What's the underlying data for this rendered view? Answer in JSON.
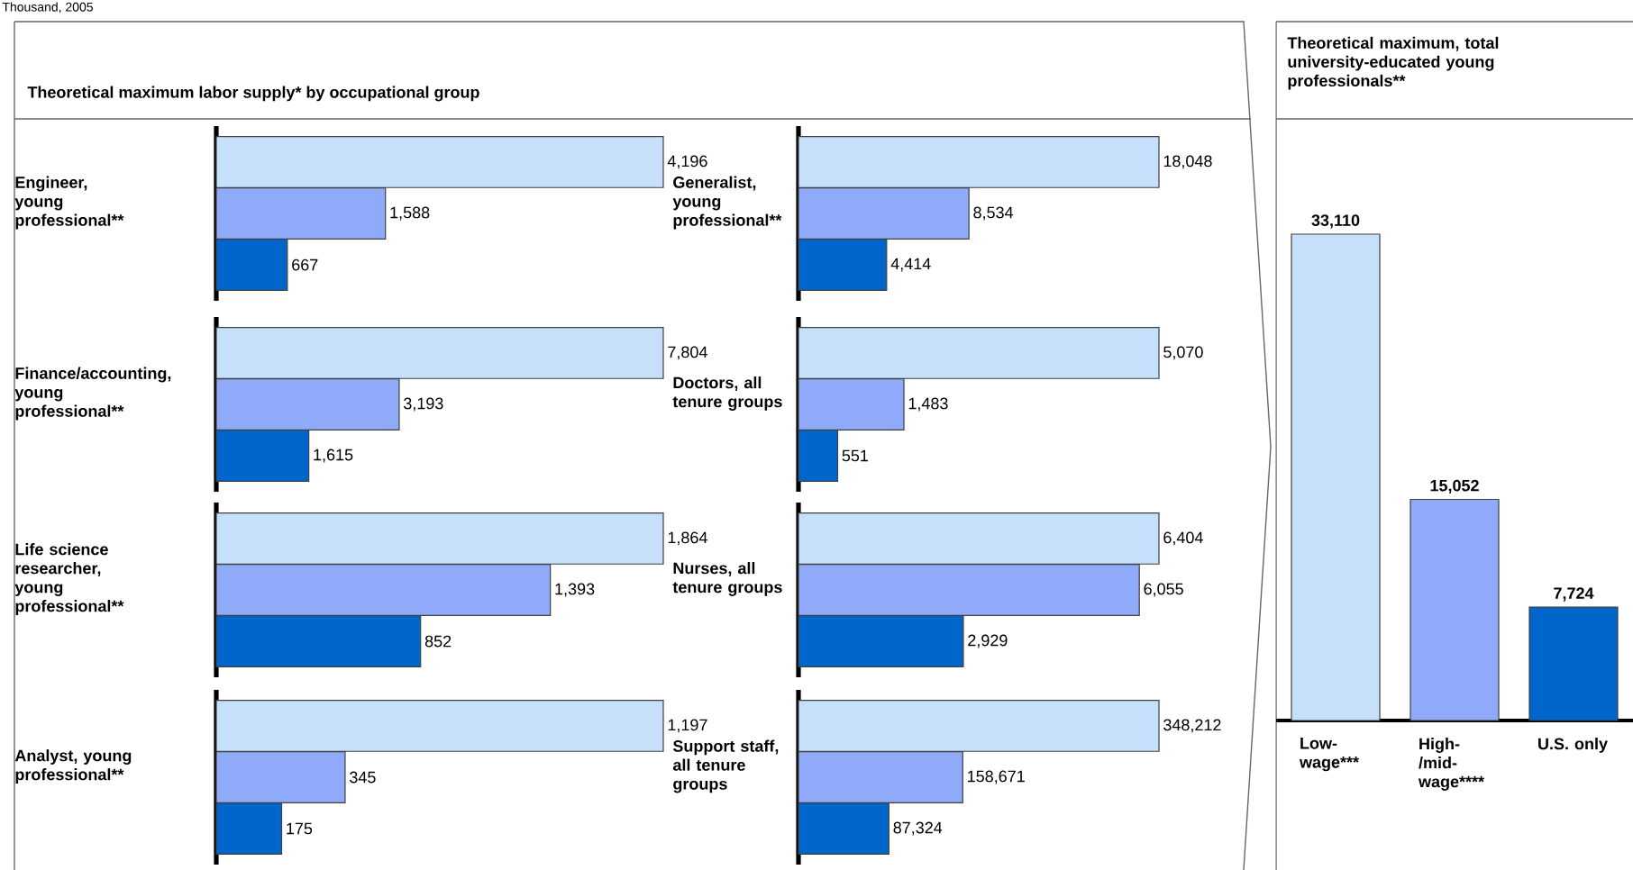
{
  "chart_data": [
    {
      "type": "other",
      "title": "Theoretical maximum labor supply* by occupational group",
      "subtitle": "Thousand, 2005"
    },
    {
      "type": "bar",
      "orientation": "horizontal",
      "title": "Engineer, young professional**",
      "categories": [
        null,
        null,
        null
      ],
      "values": [
        4196,
        1588,
        667
      ],
      "colors": [
        "#c6dffa",
        "#90aafa",
        "#0066cc"
      ],
      "value_labels": [
        "4,196",
        "1,588",
        "667"
      ]
    },
    {
      "type": "bar",
      "orientation": "horizontal",
      "title": "Generalist, young professional**",
      "categories": [
        null,
        null,
        null
      ],
      "values": [
        18048,
        8534,
        4414
      ],
      "colors": [
        "#c6dffa",
        "#90aafa",
        "#0066cc"
      ],
      "value_labels": [
        "18,048",
        "8,534",
        "4,414"
      ]
    },
    {
      "type": "bar",
      "orientation": "horizontal",
      "title": "Finance/accounting, young professional**",
      "categories": [
        null,
        null,
        null
      ],
      "values": [
        7804,
        3193,
        1615
      ],
      "colors": [
        "#c6dffa",
        "#90aafa",
        "#0066cc"
      ],
      "value_labels": [
        "7,804",
        "3,193",
        "1,615"
      ]
    },
    {
      "type": "bar",
      "orientation": "horizontal",
      "title": "Doctors, all tenure groups",
      "categories": [
        null,
        null,
        null
      ],
      "values": [
        5070,
        1483,
        551
      ],
      "colors": [
        "#c6dffa",
        "#90aafa",
        "#0066cc"
      ],
      "value_labels": [
        "5,070",
        "1,483",
        "551"
      ]
    },
    {
      "type": "bar",
      "orientation": "horizontal",
      "title": "Life science researcher, young professional**",
      "categories": [
        null,
        null,
        null
      ],
      "values": [
        1864,
        1393,
        852
      ],
      "colors": [
        "#c6dffa",
        "#90aafa",
        "#0066cc"
      ],
      "value_labels": [
        "1,864",
        "1,393",
        "852"
      ]
    },
    {
      "type": "bar",
      "orientation": "horizontal",
      "title": "Nurses, all tenure groups",
      "categories": [
        null,
        null,
        null
      ],
      "values": [
        6404,
        6055,
        2929
      ],
      "colors": [
        "#c6dffa",
        "#90aafa",
        "#0066cc"
      ],
      "value_labels": [
        "6,404",
        "6,055",
        "2,929"
      ]
    },
    {
      "type": "bar",
      "orientation": "horizontal",
      "title": "Analyst, young professional**",
      "categories": [
        null,
        null,
        null
      ],
      "values": [
        1197,
        345,
        175
      ],
      "colors": [
        "#c6dffa",
        "#90aafa",
        "#0066cc"
      ],
      "value_labels": [
        "1,197",
        "345",
        "175"
      ]
    },
    {
      "type": "bar",
      "orientation": "horizontal",
      "title": "Support staff, all tenure groups",
      "categories": [
        null,
        null,
        null
      ],
      "values": [
        348212,
        158671,
        87324
      ],
      "colors": [
        "#c6dffa",
        "#90aafa",
        "#0066cc"
      ],
      "value_labels": [
        "348,212",
        "158,671",
        "87,324"
      ]
    },
    {
      "type": "bar",
      "title": "Theoretical maximum, total university-educated young professionals**",
      "categories": [
        "Low-wage***",
        "High-/mid-wage****",
        "U.S. only"
      ],
      "values": [
        33110,
        15052,
        7724
      ],
      "colors": [
        "#c6dffa",
        "#90aafa",
        "#0066cc"
      ],
      "value_labels": [
        "33,110",
        "15,052",
        "7,724"
      ]
    }
  ]
}
